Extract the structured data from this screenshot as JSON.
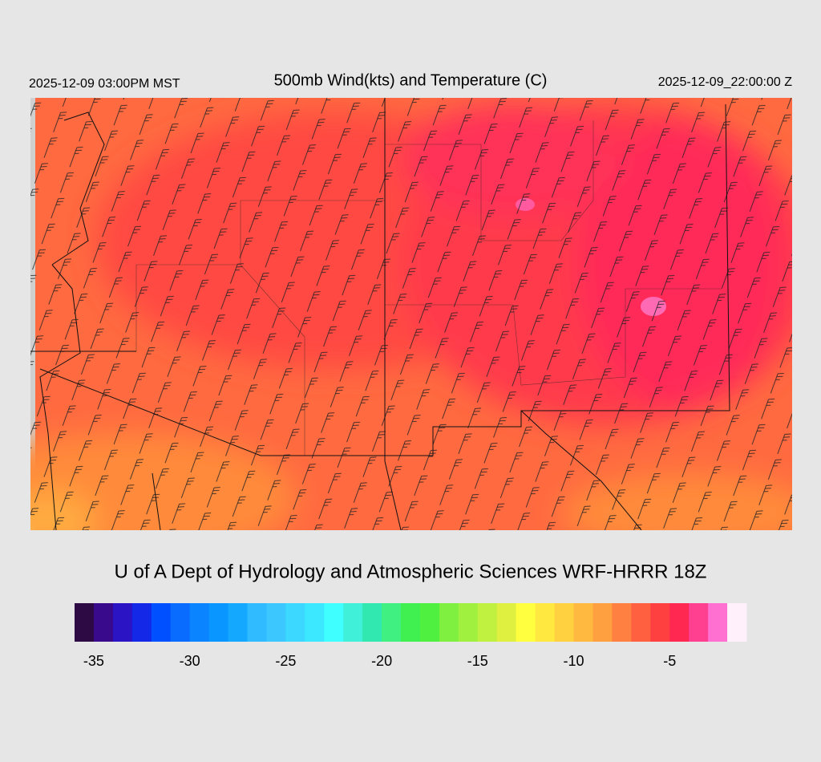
{
  "header": {
    "left": "2025-12-09 03:00PM MST",
    "title": "500mb Wind(kts) and Temperature (C)",
    "right": "2025-12-09_22:00:00 Z"
  },
  "footer": {
    "credit": "U of A Dept of Hydrology and Atmospheric Sciences WRF-HRRR 18Z"
  },
  "colorbar": {
    "range": [
      -36,
      -1
    ],
    "ticks": [
      -35,
      -30,
      -25,
      -20,
      -15,
      -10,
      -5
    ],
    "colors": [
      "#2e0a44",
      "#3a0a8c",
      "#2a14c4",
      "#1428e8",
      "#0050ff",
      "#0a6cff",
      "#0a84ff",
      "#0a96ff",
      "#14a8ff",
      "#30baff",
      "#3cc8ff",
      "#3cd8ff",
      "#3ce8ff",
      "#40ffff",
      "#40f0d8",
      "#30e8b0",
      "#40f080",
      "#40f050",
      "#50f040",
      "#80f040",
      "#a0f040",
      "#c0f040",
      "#e0f040",
      "#ffff40",
      "#ffe840",
      "#ffd040",
      "#ffb840",
      "#ffa040",
      "#ff8040",
      "#ff6040",
      "#ff4040",
      "#ff2850",
      "#ff4090",
      "#ff70d0",
      "#fff0fc"
    ]
  }
}
